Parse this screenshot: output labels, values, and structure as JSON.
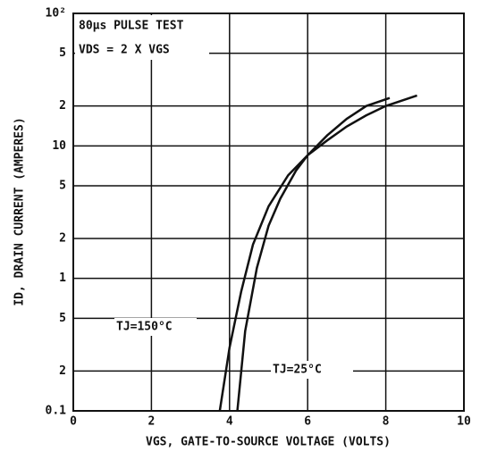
{
  "chart_data": {
    "type": "line",
    "annotations": [
      "80µs PULSE TEST",
      "VDS = 2 X VGS"
    ],
    "xlabel": "VGS, GATE-TO-SOURCE VOLTAGE (VOLTS)",
    "ylabel": "ID, DRAIN CURRENT (AMPERES)",
    "xlim": [
      0,
      10
    ],
    "xticks": [
      0,
      2,
      4,
      6,
      8,
      10
    ],
    "ylim": [
      0.1,
      100
    ],
    "yscale": "log",
    "yticks": [
      0.1,
      {
        "value": 0.2,
        "label": "2"
      },
      {
        "value": 0.5,
        "label": "5"
      },
      1,
      2,
      5,
      10,
      {
        "value": 20,
        "label": "2"
      },
      {
        "value": 50,
        "label": "5"
      },
      {
        "value": 100,
        "label": "10²"
      }
    ],
    "grid": true,
    "color": "#111111",
    "series": [
      {
        "name": "TJ=150°C",
        "x": [
          3.75,
          4.0,
          4.3,
          4.6,
          5.0,
          5.5,
          6.0,
          6.5,
          7.0,
          7.5,
          8.0,
          8.8
        ],
        "values": [
          0.1,
          0.3,
          0.8,
          1.8,
          3.5,
          6,
          8.5,
          11,
          14,
          17,
          20,
          24
        ]
      },
      {
        "name": "TJ=25°C",
        "x": [
          4.2,
          4.4,
          4.7,
          5.0,
          5.3,
          5.7,
          6.0,
          6.5,
          7.0,
          7.5,
          8.1
        ],
        "values": [
          0.1,
          0.4,
          1.2,
          2.5,
          4,
          6.5,
          8.5,
          12,
          16,
          20,
          23
        ]
      }
    ]
  }
}
